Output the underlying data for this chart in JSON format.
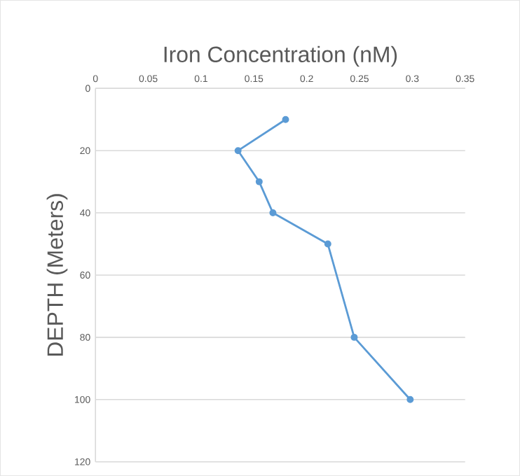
{
  "chart_data": {
    "type": "line",
    "title": "Iron Concentration (nM)",
    "ylabel": "DEPTH (Meters)",
    "x": [
      0.18,
      0.135,
      0.155,
      0.168,
      0.22,
      0.245,
      0.298
    ],
    "series": [
      {
        "color": "#5b9bd5",
        "values": [
          10,
          20,
          30,
          40,
          50,
          80,
          100
        ]
      }
    ],
    "xlim": [
      0,
      0.35
    ],
    "xticks": [
      0,
      0.05,
      0.1,
      0.15,
      0.2,
      0.25,
      0.3,
      0.35
    ],
    "ylim": [
      120,
      0
    ],
    "yticks": [
      0,
      20,
      40,
      60,
      80,
      100,
      120
    ],
    "grid": "y",
    "marker": "circle",
    "line_style": "solid"
  }
}
